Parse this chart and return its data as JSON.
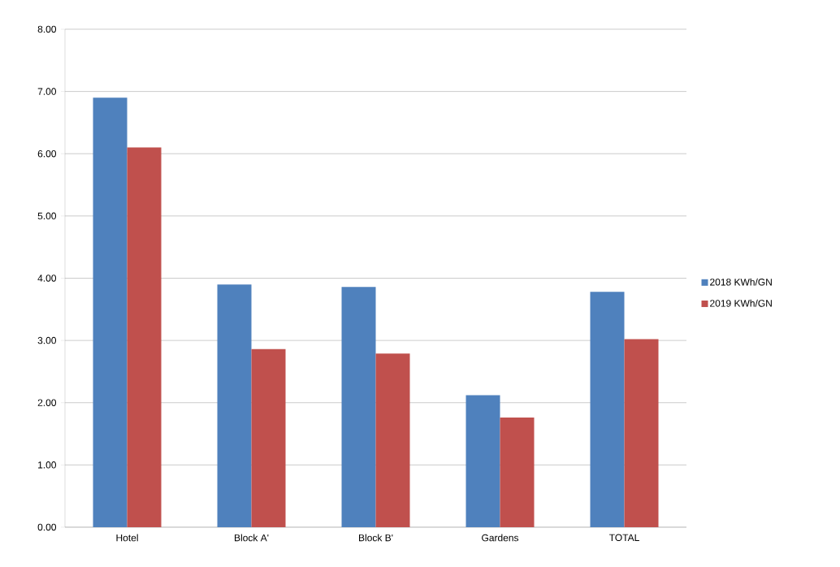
{
  "chart_data": {
    "type": "bar",
    "categories": [
      "Hotel",
      "Block A'",
      "Block B'",
      "Gardens",
      "TOTAL"
    ],
    "series": [
      {
        "name": "2018 KWh/GN",
        "color": "#4f81bd",
        "values": [
          6.9,
          3.9,
          3.86,
          2.12,
          3.78
        ]
      },
      {
        "name": "2019 KWh/GN",
        "color": "#c0504d",
        "values": [
          6.1,
          2.86,
          2.79,
          1.76,
          3.02
        ]
      }
    ],
    "ylim": [
      0,
      8
    ],
    "yticks": [
      {
        "value": 0,
        "label": "0.00"
      },
      {
        "value": 1,
        "label": "1.00"
      },
      {
        "value": 2,
        "label": "2.00"
      },
      {
        "value": 3,
        "label": "3.00"
      },
      {
        "value": 4,
        "label": "4.00"
      },
      {
        "value": 5,
        "label": "5.00"
      },
      {
        "value": 6,
        "label": "6.00"
      },
      {
        "value": 7,
        "label": "7.00"
      },
      {
        "value": 8,
        "label": "8.00"
      }
    ],
    "grid": "y",
    "legend": "right"
  }
}
